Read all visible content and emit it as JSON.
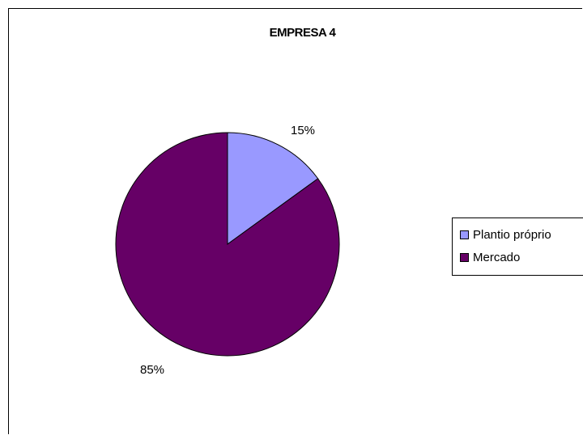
{
  "chart_data": {
    "type": "pie",
    "title": "EMPRESA 4",
    "categories": [
      "Plantio próprio",
      "Mercado"
    ],
    "values": [
      15,
      85
    ],
    "labels": [
      "15%",
      "85%"
    ],
    "colors": [
      "#9999ff",
      "#660066"
    ],
    "start_angle": "12 o'clock",
    "direction": "clockwise",
    "legend_position": "right"
  }
}
